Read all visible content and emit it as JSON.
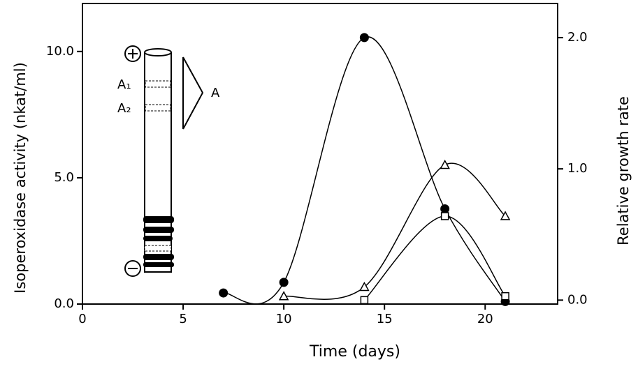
{
  "chart_data": {
    "type": "line",
    "xlabel": "Time (days)",
    "ylabel": "Isoperoxidase activity (nkat/ml)",
    "y2label": "Relative growth rate",
    "xlim": [
      0,
      23.6
    ],
    "xticks": [
      0,
      5,
      10,
      15,
      20
    ],
    "ylim": [
      0,
      11.9
    ],
    "yticks": [
      {
        "value": 0,
        "label": "0.0"
      },
      {
        "value": 5,
        "label": "5.0"
      },
      {
        "value": 10,
        "label": "10.0"
      }
    ],
    "y2lim": [
      -0.03,
      2.26
    ],
    "y2ticks": [
      {
        "value": 0,
        "label": "0.0"
      },
      {
        "value": 1,
        "label": "1.0"
      },
      {
        "value": 2,
        "label": "2.0"
      }
    ],
    "series": [
      {
        "marker": "circle",
        "color": "#000000",
        "x": [
          7,
          10,
          14,
          18,
          21
        ],
        "values": [
          0.44,
          0.86,
          10.55,
          3.77,
          0.1
        ]
      },
      {
        "marker": "triangle",
        "color": "#000000",
        "axis": "y2",
        "x": [
          10,
          14,
          18,
          21
        ],
        "values": [
          0.03,
          0.1,
          1.03,
          0.64
        ]
      },
      {
        "marker": "square",
        "color": "#000000",
        "axis": "y2",
        "x": [
          14,
          18,
          21
        ],
        "values": [
          0.0,
          0.64,
          0.03
        ]
      }
    ],
    "annotations": [
      "A₁",
      "A₂",
      "A"
    ]
  }
}
